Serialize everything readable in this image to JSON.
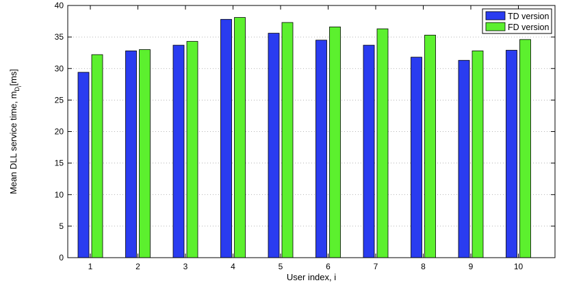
{
  "chart_data": {
    "type": "bar",
    "categories": [
      "1",
      "2",
      "3",
      "4",
      "5",
      "6",
      "7",
      "8",
      "9",
      "10"
    ],
    "series": [
      {
        "name": "TD version",
        "values": [
          29.4,
          32.8,
          33.7,
          37.8,
          35.6,
          34.5,
          33.7,
          31.8,
          31.3,
          32.9
        ],
        "color": "#2a3cf0"
      },
      {
        "name": "FD version",
        "values": [
          32.2,
          33.0,
          34.3,
          38.1,
          37.3,
          36.6,
          36.3,
          35.3,
          32.8,
          34.6
        ],
        "color": "#5cf02e"
      }
    ],
    "xlabel": "User index, i",
    "ylabel_main": "Mean DLL service time, m",
    "ylabel_sub1": "D",
    "ylabel_sub2": "i",
    "ylabel_unit": "[ms]",
    "ylim": [
      0,
      40
    ],
    "yticks": [
      "0",
      "5",
      "10",
      "15",
      "20",
      "25",
      "30",
      "35",
      "40"
    ],
    "grid": "horizontal-dotted",
    "legend_position": "top-right"
  }
}
